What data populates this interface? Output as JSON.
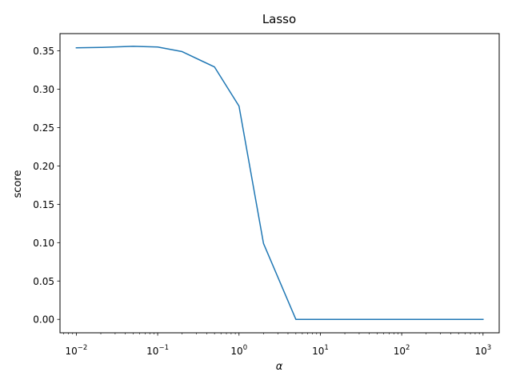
{
  "chart_data": {
    "type": "line",
    "title": "Lasso",
    "xlabel": "α",
    "ylabel": "score",
    "x_scale": "log",
    "xlim": [
      0.0063,
      1580
    ],
    "ylim": [
      -0.0175,
      0.3725
    ],
    "grid": false,
    "legend": "none",
    "x_ticks": [
      {
        "value": 0.01,
        "base": "10",
        "exp": "−2"
      },
      {
        "value": 0.1,
        "base": "10",
        "exp": "−1"
      },
      {
        "value": 1,
        "base": "10",
        "exp": "0"
      },
      {
        "value": 10,
        "base": "10",
        "exp": "1"
      },
      {
        "value": 100,
        "base": "10",
        "exp": "2"
      },
      {
        "value": 1000,
        "base": "10",
        "exp": "3"
      }
    ],
    "y_ticks": [
      0,
      0.05,
      0.1,
      0.15,
      0.2,
      0.25,
      0.3,
      0.35
    ],
    "y_tick_labels": [
      "0.00",
      "0.05",
      "0.10",
      "0.15",
      "0.20",
      "0.25",
      "0.30",
      "0.35"
    ],
    "series": [
      {
        "color": "#1f77b4",
        "x": [
          0.01,
          0.02,
          0.05,
          0.1,
          0.2,
          0.5,
          1,
          2,
          5,
          10,
          20,
          50,
          100,
          200,
          500,
          1000
        ],
        "y": [
          0.354,
          0.3545,
          0.356,
          0.355,
          0.349,
          0.329,
          0.278,
          0.099,
          0.0,
          0.0,
          0.0,
          0.0,
          0.0,
          0.0,
          0.0,
          0.0
        ]
      }
    ]
  }
}
